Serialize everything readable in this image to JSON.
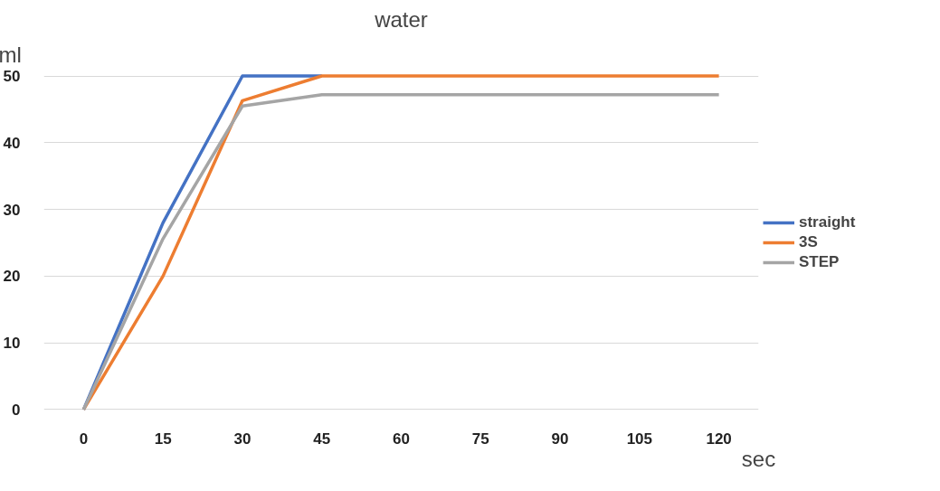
{
  "chart_data": {
    "type": "line",
    "title": "water",
    "xlabel": "sec",
    "ylabel": "ml",
    "categories": [
      "0",
      "15",
      "30",
      "45",
      "60",
      "75",
      "90",
      "105",
      "120"
    ],
    "series": [
      {
        "name": "straight",
        "color": "#4472c4",
        "values": [
          0,
          28,
          50,
          50,
          null,
          null,
          null,
          null,
          null
        ]
      },
      {
        "name": "3S",
        "color": "#ed7d31",
        "values": [
          0,
          20,
          46.3,
          50,
          50,
          50,
          50,
          50,
          50
        ]
      },
      {
        "name": "STEP",
        "color": "#a5a5a5",
        "values": [
          0,
          25.6,
          45.5,
          47.2,
          47.2,
          47.2,
          47.2,
          47.2,
          47.2
        ]
      }
    ],
    "ylim": [
      0,
      50
    ],
    "yticks": [
      0,
      10,
      20,
      30,
      40,
      50
    ],
    "grid": "y",
    "legend": "right",
    "marker": "none",
    "line_style": "solid"
  }
}
